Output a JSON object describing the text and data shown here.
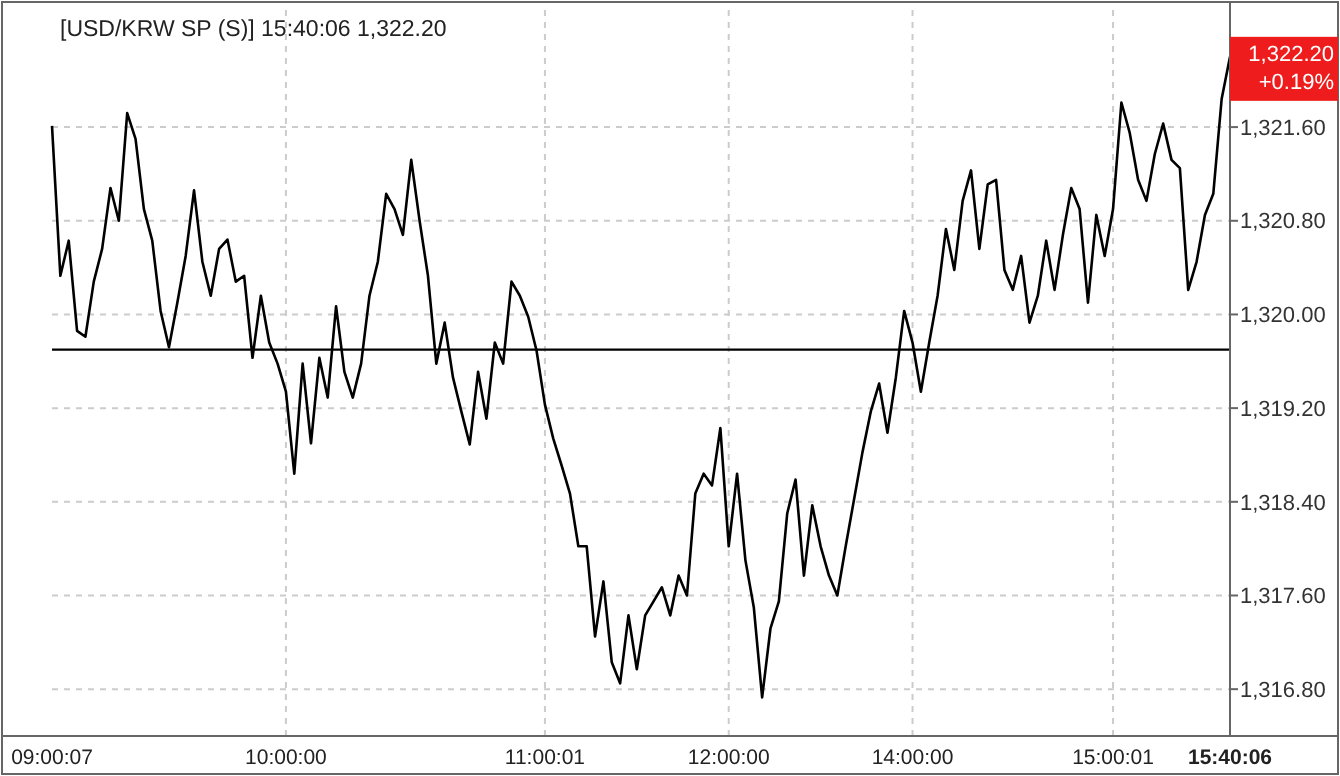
{
  "chart_data": {
    "type": "line",
    "title": "[USD/KRW SP (S)] 15:40:06  1,322.20",
    "categories": [
      "09:00:07",
      null,
      null,
      null,
      null,
      null,
      null,
      null,
      null,
      null,
      null,
      null,
      null,
      null,
      null,
      null,
      null,
      null,
      null,
      null,
      null,
      null,
      null,
      null,
      null,
      null,
      null,
      null,
      "10:00:00",
      null,
      null,
      null,
      null,
      null,
      null,
      null,
      null,
      null,
      null,
      null,
      null,
      null,
      null,
      null,
      null,
      null,
      null,
      null,
      null,
      null,
      null,
      null,
      null,
      null,
      null,
      null,
      null,
      null,
      null,
      "11:00:01",
      null,
      null,
      null,
      null,
      null,
      null,
      null,
      null,
      null,
      null,
      null,
      null,
      null,
      null,
      null,
      null,
      null,
      null,
      null,
      null,
      null,
      "12:00:00",
      null,
      null,
      null,
      null,
      null,
      null,
      null,
      null,
      null,
      null,
      null,
      null,
      null,
      null,
      null,
      null,
      null,
      null,
      null,
      null,
      null,
      "14:00:00",
      null,
      null,
      null,
      null,
      null,
      null,
      null,
      null,
      null,
      null,
      null,
      null,
      null,
      null,
      null,
      null,
      null,
      null,
      null,
      null,
      null,
      null,
      null,
      "15:00:01",
      null,
      null,
      null,
      null,
      null,
      null,
      null,
      null,
      null,
      null,
      null,
      null,
      null,
      "15:40:06"
    ],
    "series": [
      {
        "color": "#000000",
        "values": [
          1321.61,
          1320.33,
          1320.63,
          1319.86,
          1319.81,
          1320.28,
          1320.56,
          1321.08,
          1320.8,
          1321.72,
          1321.5,
          1320.9,
          1320.63,
          1320.03,
          1319.72,
          1320.1,
          1320.5,
          1321.06,
          1320.45,
          1320.16,
          1320.56,
          1320.64,
          1320.28,
          1320.33,
          1319.63,
          1320.16,
          1319.76,
          1319.58,
          1319.34,
          1318.64,
          1319.58,
          1318.9,
          1319.63,
          1319.29,
          1320.07,
          1319.51,
          1319.29,
          1319.58,
          1320.16,
          1320.45,
          1321.03,
          1320.9,
          1320.68,
          1321.32,
          1320.8,
          1320.33,
          1319.58,
          1319.93,
          1319.46,
          1319.17,
          1318.89,
          1319.51,
          1319.11,
          1319.76,
          1319.58,
          1320.28,
          1320.16,
          1319.98,
          1319.69,
          1319.23,
          1318.94,
          1318.71,
          1318.47,
          1318.02,
          1318.02,
          1317.25,
          1317.72,
          1317.03,
          1316.85,
          1317.43,
          1316.97,
          1317.43,
          1317.55,
          1317.67,
          1317.43,
          1317.77,
          1317.6,
          1318.47,
          1318.64,
          1318.54,
          1319.03,
          1318.02,
          1318.64,
          1317.9,
          1317.5,
          1316.73,
          1317.32,
          1317.55,
          1318.3,
          1318.59,
          1317.77,
          1318.37,
          1318.02,
          1317.77,
          1317.6,
          1318.02,
          1318.42,
          1318.82,
          1319.17,
          1319.41,
          1318.99,
          1319.46,
          1320.03,
          1319.76,
          1319.34,
          1319.76,
          1320.16,
          1320.73,
          1320.38,
          1320.97,
          1321.23,
          1320.56,
          1321.11,
          1321.15,
          1320.38,
          1320.21,
          1320.5,
          1319.93,
          1320.16,
          1320.63,
          1320.21,
          1320.68,
          1321.08,
          1320.9,
          1320.1,
          1320.85,
          1320.5,
          1320.9,
          1321.81,
          1321.55,
          1321.15,
          1320.97,
          1321.37,
          1321.63,
          1321.32,
          1321.25,
          1320.21,
          1320.45,
          1320.85,
          1321.03,
          1321.84,
          1322.2
        ]
      }
    ],
    "ylim": [
      1316.4,
      1322.6
    ],
    "yticks": [
      {
        "value": 1316.8,
        "label": "1,316.80"
      },
      {
        "value": 1317.6,
        "label": "1,317.60"
      },
      {
        "value": 1318.4,
        "label": "1,318.40"
      },
      {
        "value": 1319.2,
        "label": "1,319.20"
      },
      {
        "value": 1320.0,
        "label": "1,320.00"
      },
      {
        "value": 1320.8,
        "label": "1,320.80"
      },
      {
        "value": 1321.6,
        "label": "1,321.60"
      }
    ],
    "grid": true,
    "ref_lines": [
      {
        "axis": "y",
        "value": 1319.7,
        "color": "#000000"
      }
    ],
    "annotations": [
      {
        "text": "1,322.20",
        "x": "15:40:06",
        "y": 1322.2
      },
      {
        "text": "+0.19%",
        "x": "15:40:06",
        "y": 1322.2
      }
    ]
  }
}
